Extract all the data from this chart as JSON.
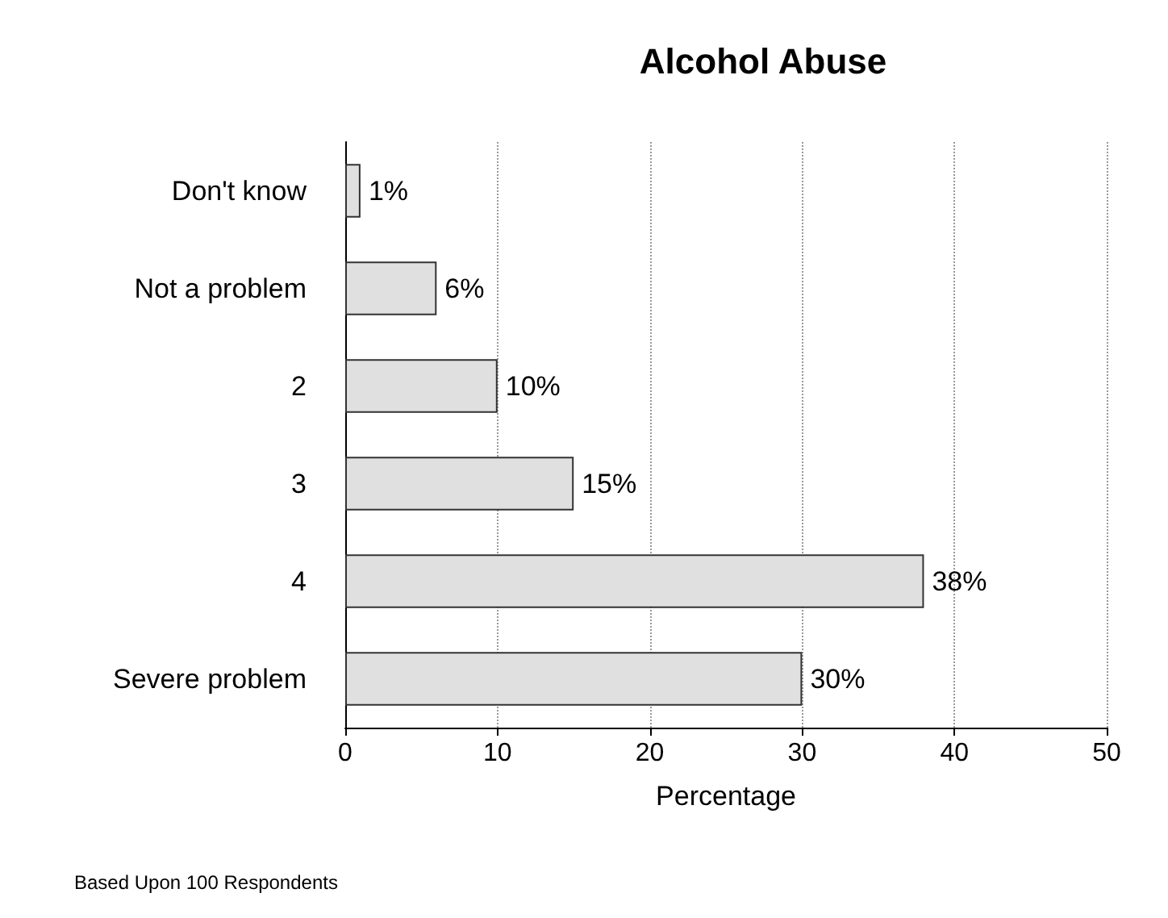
{
  "chart_data": {
    "type": "bar",
    "orientation": "horizontal",
    "title": "Alcohol Abuse",
    "xlabel": "Percentage",
    "categories": [
      "Don't know",
      "Not a problem",
      "2",
      "3",
      "4",
      "Severe problem"
    ],
    "values": [
      1,
      6,
      10,
      15,
      38,
      30
    ],
    "value_labels": [
      "1%",
      "6%",
      "10%",
      "15%",
      "38%",
      "30%"
    ],
    "color": "#e0e0e0",
    "xlim": [
      0,
      50
    ],
    "xticks": [
      0,
      10,
      20,
      30,
      40,
      50
    ],
    "grid": "x",
    "annotations": [
      "Based Upon 100 Respondents"
    ]
  }
}
